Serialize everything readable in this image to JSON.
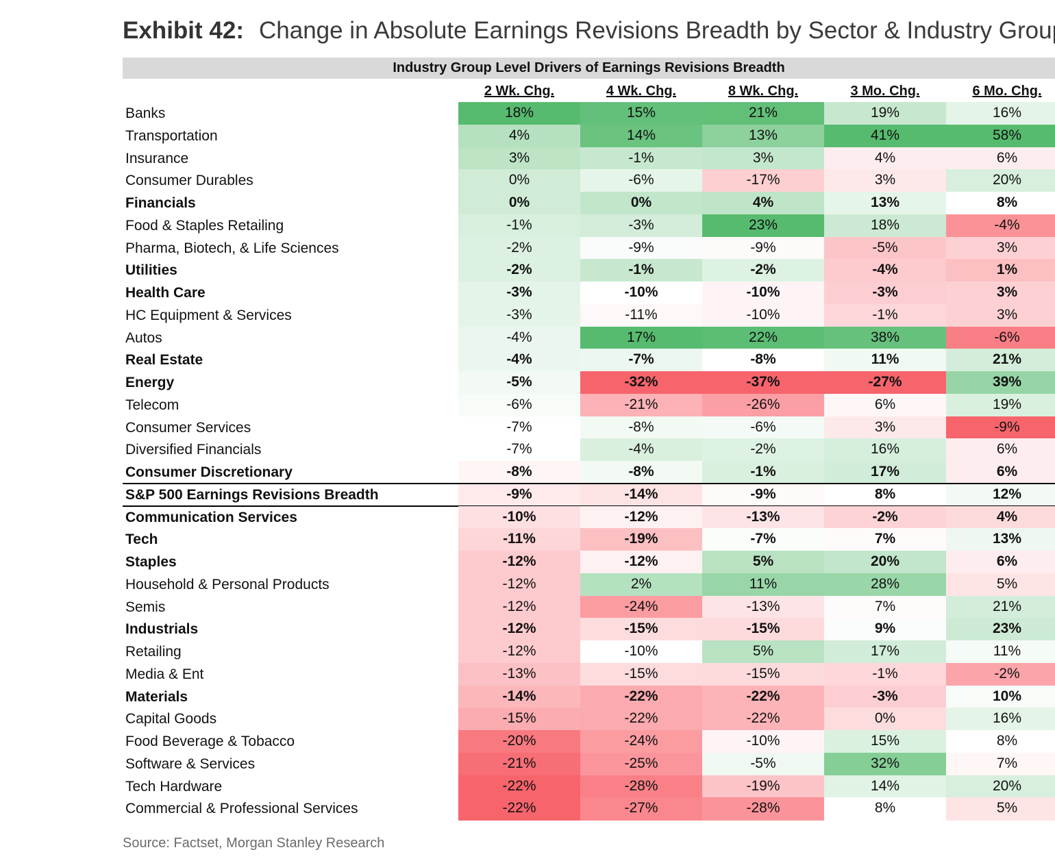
{
  "header": {
    "exhibit_label": "Exhibit 42:",
    "title": "Change in Absolute Earnings Revisions Breadth by Sector & Industry Group",
    "subtitle": "Industry Group Level Drivers of Earnings Revisions Breadth"
  },
  "footer": {
    "source": "Source: Factset, Morgan Stanley Research"
  },
  "colors": {
    "positive": "#57bb6f",
    "negative": "#f8646c",
    "neutral": "#ffffff",
    "band": "#d9d9d9"
  },
  "chart_data": {
    "type": "table",
    "title": "Change in Absolute Earnings Revisions Breadth by Sector & Industry Group",
    "subtitle": "Industry Group Level Drivers of Earnings Revisions Breadth",
    "columns": [
      "2 Wk. Chg.",
      "4 Wk. Chg.",
      "8 Wk. Chg.",
      "3 Mo. Chg.",
      "6 Mo. Chg."
    ],
    "rows": [
      {
        "label": "Banks",
        "bold": false,
        "values": [
          "18%",
          "15%",
          "21%",
          "19%",
          "16%"
        ]
      },
      {
        "label": "Transportation",
        "bold": false,
        "values": [
          "4%",
          "14%",
          "13%",
          "41%",
          "58%"
        ]
      },
      {
        "label": "Insurance",
        "bold": false,
        "values": [
          "3%",
          "-1%",
          "3%",
          "4%",
          "6%"
        ]
      },
      {
        "label": "Consumer Durables",
        "bold": false,
        "values": [
          "0%",
          "-6%",
          "-17%",
          "3%",
          "20%"
        ]
      },
      {
        "label": "Financials",
        "bold": true,
        "values": [
          "0%",
          "0%",
          "4%",
          "13%",
          "8%"
        ]
      },
      {
        "label": "Food & Staples Retailing",
        "bold": false,
        "values": [
          "-1%",
          "-3%",
          "23%",
          "18%",
          "-4%"
        ]
      },
      {
        "label": "Pharma, Biotech, & Life Sciences",
        "bold": false,
        "values": [
          "-2%",
          "-9%",
          "-9%",
          "-5%",
          "3%"
        ]
      },
      {
        "label": "Utilities",
        "bold": true,
        "values": [
          "-2%",
          "-1%",
          "-2%",
          "-4%",
          "1%"
        ]
      },
      {
        "label": "Health Care",
        "bold": true,
        "values": [
          "-3%",
          "-10%",
          "-10%",
          "-3%",
          "3%"
        ]
      },
      {
        "label": "HC Equipment & Services",
        "bold": false,
        "values": [
          "-3%",
          "-11%",
          "-10%",
          "-1%",
          "3%"
        ]
      },
      {
        "label": "Autos",
        "bold": false,
        "values": [
          "-4%",
          "17%",
          "22%",
          "38%",
          "-6%"
        ]
      },
      {
        "label": "Real Estate",
        "bold": true,
        "values": [
          "-4%",
          "-7%",
          "-8%",
          "11%",
          "21%"
        ]
      },
      {
        "label": "Energy",
        "bold": true,
        "values": [
          "-5%",
          "-32%",
          "-37%",
          "-27%",
          "39%"
        ]
      },
      {
        "label": "Telecom",
        "bold": false,
        "values": [
          "-6%",
          "-21%",
          "-26%",
          "6%",
          "19%"
        ]
      },
      {
        "label": "Consumer Services",
        "bold": false,
        "values": [
          "-7%",
          "-8%",
          "-6%",
          "3%",
          "-9%"
        ]
      },
      {
        "label": "Diversified Financials",
        "bold": false,
        "values": [
          "-7%",
          "-4%",
          "-2%",
          "16%",
          "6%"
        ]
      },
      {
        "label": "Consumer Discretionary",
        "bold": true,
        "values": [
          "-8%",
          "-8%",
          "-1%",
          "17%",
          "6%"
        ]
      },
      {
        "label": "S&P 500 Earnings Revisions Breadth",
        "bold": true,
        "index": true,
        "values": [
          "-9%",
          "-14%",
          "-9%",
          "8%",
          "12%"
        ]
      },
      {
        "label": "Communication Services",
        "bold": true,
        "values": [
          "-10%",
          "-12%",
          "-13%",
          "-2%",
          "4%"
        ]
      },
      {
        "label": "Tech",
        "bold": true,
        "values": [
          "-11%",
          "-19%",
          "-7%",
          "7%",
          "13%"
        ]
      },
      {
        "label": "Staples",
        "bold": true,
        "values": [
          "-12%",
          "-12%",
          "5%",
          "20%",
          "6%"
        ]
      },
      {
        "label": "Household & Personal Products",
        "bold": false,
        "values": [
          "-12%",
          "2%",
          "11%",
          "28%",
          "5%"
        ]
      },
      {
        "label": "Semis",
        "bold": false,
        "values": [
          "-12%",
          "-24%",
          "-13%",
          "7%",
          "21%"
        ]
      },
      {
        "label": "Industrials",
        "bold": true,
        "values": [
          "-12%",
          "-15%",
          "-15%",
          "9%",
          "23%"
        ]
      },
      {
        "label": "Retailing",
        "bold": false,
        "values": [
          "-12%",
          "-10%",
          "5%",
          "17%",
          "11%"
        ]
      },
      {
        "label": "Media & Ent",
        "bold": false,
        "values": [
          "-13%",
          "-15%",
          "-15%",
          "-1%",
          "-2%"
        ]
      },
      {
        "label": "Materials",
        "bold": true,
        "values": [
          "-14%",
          "-22%",
          "-22%",
          "-3%",
          "10%"
        ]
      },
      {
        "label": "Capital Goods",
        "bold": false,
        "values": [
          "-15%",
          "-22%",
          "-22%",
          "0%",
          "16%"
        ]
      },
      {
        "label": "Food Beverage & Tobacco",
        "bold": false,
        "values": [
          "-20%",
          "-24%",
          "-10%",
          "15%",
          "8%"
        ]
      },
      {
        "label": "Software & Services",
        "bold": false,
        "values": [
          "-21%",
          "-25%",
          "-5%",
          "32%",
          "7%"
        ]
      },
      {
        "label": "Tech Hardware",
        "bold": false,
        "values": [
          "-22%",
          "-28%",
          "-19%",
          "14%",
          "20%"
        ]
      },
      {
        "label": "Commercial & Professional Services",
        "bold": false,
        "values": [
          "-22%",
          "-27%",
          "-28%",
          "8%",
          "5%"
        ]
      }
    ]
  }
}
